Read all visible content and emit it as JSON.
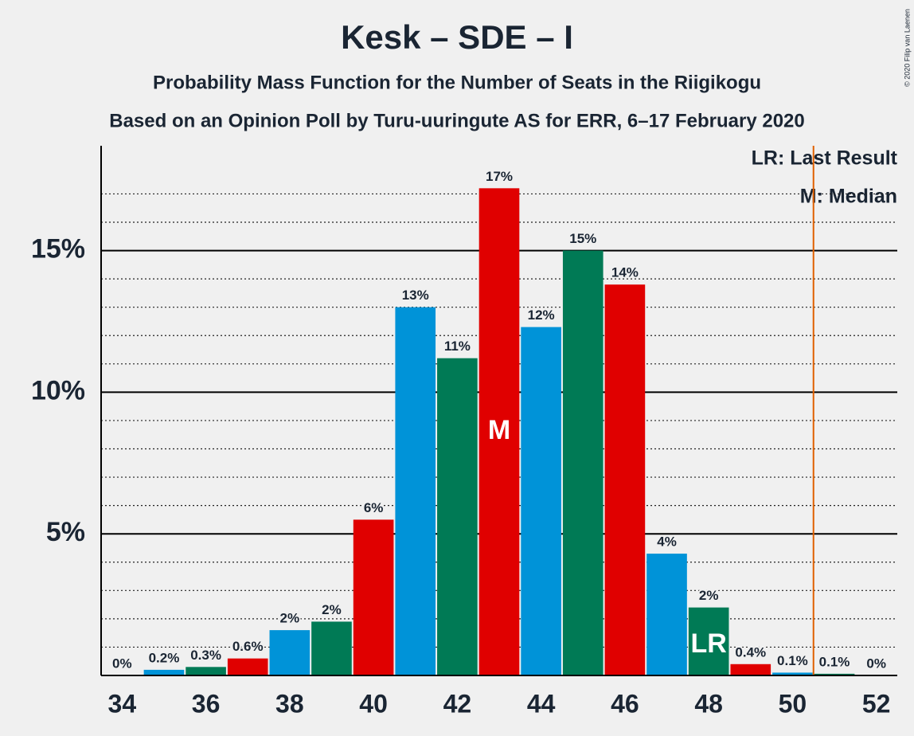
{
  "chart_data": {
    "type": "bar",
    "title": "Kesk – SDE – I",
    "subtitle": "Probability Mass Function for the Number of Seats in the Riigikogu",
    "subtitle2": "Based on an Opinion Poll by Turu-uuringute AS for ERR, 6–17 February 2020",
    "copyright": "© 2020 Filip van Laenen",
    "x": [
      34,
      35,
      36,
      37,
      38,
      39,
      40,
      41,
      42,
      43,
      44,
      45,
      46,
      47,
      48,
      49,
      50,
      51,
      52
    ],
    "values": [
      0,
      0.2,
      0.3,
      0.6,
      1.6,
      1.9,
      5.5,
      13.0,
      11.2,
      17.2,
      12.3,
      15.0,
      13.8,
      4.3,
      2.4,
      0.4,
      0.1,
      0.06,
      0
    ],
    "value_labels": [
      "0%",
      "0.2%",
      "0.3%",
      "0.6%",
      "2%",
      "2%",
      "6%",
      "13%",
      "11%",
      "17%",
      "12%",
      "15%",
      "14%",
      "4%",
      "2%",
      "0.4%",
      "0.1%",
      "0.1%",
      "0%"
    ],
    "colors": [
      "#e00000",
      "#0093d8",
      "#007a55",
      "#e00000",
      "#0093d8",
      "#007a55",
      "#e00000",
      "#0093d8",
      "#007a55",
      "#e00000",
      "#0093d8",
      "#007a55",
      "#e00000",
      "#0093d8",
      "#007a55",
      "#e00000",
      "#0093d8",
      "#007a55",
      "#e00000"
    ],
    "xlim": [
      33.5,
      52.5
    ],
    "xticks": [
      34,
      36,
      38,
      40,
      42,
      44,
      46,
      48,
      50,
      52
    ],
    "ylim": [
      0,
      18.7
    ],
    "yticks": [
      {
        "value": 5,
        "label": "5%"
      },
      {
        "value": 10,
        "label": "10%"
      },
      {
        "value": 15,
        "label": "15%"
      }
    ],
    "minor_yticks": [
      1,
      2,
      3,
      4,
      6,
      7,
      8,
      9,
      11,
      12,
      13,
      14,
      16,
      17
    ],
    "grid": true,
    "threshold": 50.5,
    "threshold_color": "#e06000",
    "median": 43,
    "median_label": "M",
    "last_result": 48,
    "last_result_label": "LR",
    "legend": [
      "LR: Last Result",
      "M: Median"
    ]
  }
}
